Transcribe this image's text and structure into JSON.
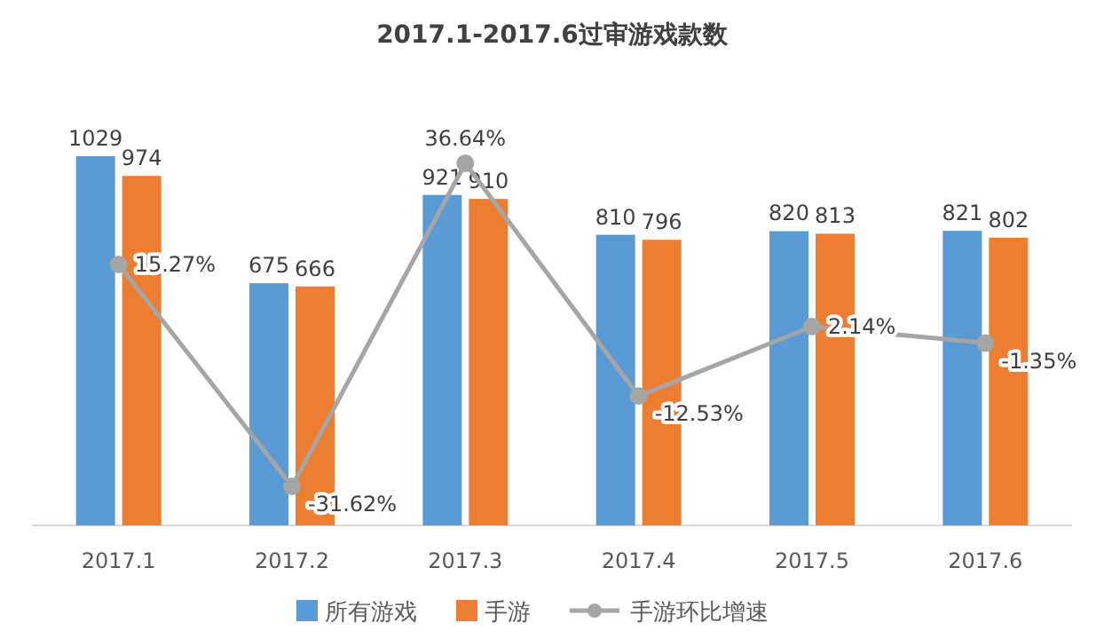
{
  "chart_data": {
    "type": "bar",
    "title": "2017.1-2017.6过审游戏款数",
    "categories": [
      "2017.1",
      "2017.2",
      "2017.3",
      "2017.4",
      "2017.5",
      "2017.6"
    ],
    "series": [
      {
        "name": "所有游戏",
        "color": "#5b9bd5",
        "values": [
          1029,
          675,
          921,
          810,
          820,
          821
        ],
        "value_labels": [
          "1029",
          "675",
          "921",
          "810",
          "820",
          "821"
        ]
      },
      {
        "name": "手游",
        "color": "#ed7d31",
        "values": [
          974,
          666,
          910,
          796,
          813,
          802
        ],
        "value_labels": [
          "974",
          "666",
          "910",
          "796",
          "813",
          "802"
        ]
      },
      {
        "name": "手游环比增速",
        "type": "line",
        "axis": "y2",
        "color": "#a5a5a5",
        "marker": "circle",
        "values": [
          15.27,
          -31.62,
          36.64,
          -12.53,
          2.14,
          -1.35
        ],
        "value_labels": [
          "15.27%",
          "-31.62%",
          "36.64%",
          "-12.53%",
          "2.14%",
          "-1.35%"
        ]
      }
    ],
    "legend": "bottom"
  }
}
